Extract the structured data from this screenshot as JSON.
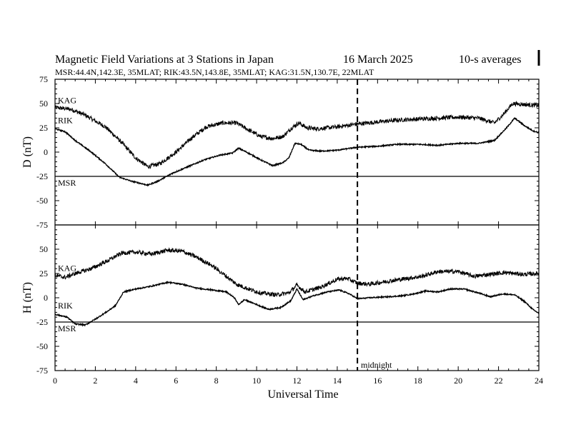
{
  "header": {
    "title": "Magnetic Field Variations at 3 Stations in Japan",
    "date": "16 March   2025",
    "averaging": "10-s averages",
    "stations_line": "MSR:44.4N,142.3E, 35MLAT;  RIK:43.5N,143.8E, 35MLAT;  KAG:31.5N,130.7E, 22MLAT"
  },
  "chart_data": {
    "type": "line",
    "xlabel": "Universal Time",
    "xlim": [
      0,
      24
    ],
    "x_ticks": [
      0,
      2,
      4,
      6,
      8,
      10,
      12,
      14,
      16,
      18,
      20,
      22,
      24
    ],
    "annotation": {
      "x": 15,
      "label": "midnight"
    },
    "panels": [
      {
        "id": "D",
        "ylabel": "D (nT)",
        "ylim": [
          -75,
          75
        ],
        "y_ticks": [
          75,
          50,
          25,
          0,
          -25,
          -50,
          -75
        ],
        "series": [
          {
            "name": "KAG",
            "noise": 2.2,
            "points": [
              [
                0,
                46
              ],
              [
                0.8,
                44
              ],
              [
                1.5,
                38
              ],
              [
                2.5,
                26
              ],
              [
                3.3,
                10
              ],
              [
                4.0,
                -6
              ],
              [
                4.6,
                -15
              ],
              [
                5.2,
                -12
              ],
              [
                6.0,
                0
              ],
              [
                6.8,
                15
              ],
              [
                7.5,
                26
              ],
              [
                8.3,
                30
              ],
              [
                9.0,
                30
              ],
              [
                9.5,
                24
              ],
              [
                10.2,
                16
              ],
              [
                10.8,
                14
              ],
              [
                11.3,
                16
              ],
              [
                11.8,
                26
              ],
              [
                12.1,
                30
              ],
              [
                12.5,
                25
              ],
              [
                13.0,
                24
              ],
              [
                14.0,
                26
              ],
              [
                15.0,
                29
              ],
              [
                16.0,
                31
              ],
              [
                17.0,
                33
              ],
              [
                18.0,
                34
              ],
              [
                19.0,
                35
              ],
              [
                20.0,
                36
              ],
              [
                21.0,
                35
              ],
              [
                21.8,
                30
              ],
              [
                22.2,
                38
              ],
              [
                22.7,
                50
              ],
              [
                23.3,
                49
              ],
              [
                24,
                48
              ]
            ]
          },
          {
            "name": "RIK",
            "noise": 0.6,
            "points": [
              [
                0,
                24
              ],
              [
                0.5,
                21
              ],
              [
                1.0,
                12
              ],
              [
                1.8,
                0
              ],
              [
                2.5,
                -12
              ],
              [
                3.2,
                -26
              ],
              [
                3.8,
                -30
              ],
              [
                4.6,
                -34
              ],
              [
                5.1,
                -30
              ],
              [
                5.8,
                -22
              ],
              [
                6.6,
                -15
              ],
              [
                7.4,
                -8
              ],
              [
                8.2,
                -3
              ],
              [
                8.8,
                -1
              ],
              [
                9.1,
                4
              ],
              [
                9.5,
                0
              ],
              [
                10.2,
                -8
              ],
              [
                10.8,
                -14
              ],
              [
                11.3,
                -11
              ],
              [
                11.6,
                -6
              ],
              [
                11.9,
                9
              ],
              [
                12.2,
                8
              ],
              [
                12.6,
                2
              ],
              [
                13.2,
                1
              ],
              [
                14.0,
                2
              ],
              [
                15.0,
                5
              ],
              [
                16.0,
                6
              ],
              [
                17.0,
                8
              ],
              [
                18.0,
                8
              ],
              [
                19.0,
                7
              ],
              [
                20.0,
                9
              ],
              [
                21.0,
                9
              ],
              [
                21.8,
                12
              ],
              [
                22.4,
                25
              ],
              [
                22.8,
                35
              ],
              [
                23.3,
                27
              ],
              [
                23.7,
                22
              ],
              [
                24,
                20
              ]
            ]
          },
          {
            "name": "MSR",
            "noise": 0,
            "points": [
              [
                0,
                -25
              ],
              [
                24,
                -25
              ]
            ]
          }
        ]
      },
      {
        "id": "H",
        "ylabel": "H (nT)",
        "ylim": [
          -75,
          75
        ],
        "y_ticks": [
          75,
          50,
          25,
          0,
          -25,
          -50,
          -75
        ],
        "series": [
          {
            "name": "KAG",
            "noise": 2.2,
            "points": [
              [
                0,
                23
              ],
              [
                0.5,
                21
              ],
              [
                1.0,
                25
              ],
              [
                1.8,
                30
              ],
              [
                2.6,
                38
              ],
              [
                3.3,
                46
              ],
              [
                4.0,
                47
              ],
              [
                4.8,
                45
              ],
              [
                5.6,
                49
              ],
              [
                6.3,
                48
              ],
              [
                7.0,
                42
              ],
              [
                7.8,
                33
              ],
              [
                8.5,
                22
              ],
              [
                9.0,
                14
              ],
              [
                9.6,
                9
              ],
              [
                10.2,
                5
              ],
              [
                11.0,
                3
              ],
              [
                11.6,
                5
              ],
              [
                12.0,
                13
              ],
              [
                12.4,
                6
              ],
              [
                13.2,
                11
              ],
              [
                14.0,
                19
              ],
              [
                14.5,
                20
              ],
              [
                15.0,
                15
              ],
              [
                15.6,
                14
              ],
              [
                16.5,
                17
              ],
              [
                17.5,
                20
              ],
              [
                18.2,
                22
              ],
              [
                19.0,
                27
              ],
              [
                20.0,
                27
              ],
              [
                20.8,
                22
              ],
              [
                21.5,
                24
              ],
              [
                22.3,
                26
              ],
              [
                23.2,
                24
              ],
              [
                24,
                25
              ]
            ]
          },
          {
            "name": "RIK",
            "noise": 0.6,
            "points": [
              [
                0,
                -17
              ],
              [
                0.6,
                -20
              ],
              [
                1.0,
                -27
              ],
              [
                1.5,
                -28
              ],
              [
                2.0,
                -22
              ],
              [
                2.6,
                -14
              ],
              [
                3.0,
                -8
              ],
              [
                3.4,
                6
              ],
              [
                4.0,
                9
              ],
              [
                4.8,
                12
              ],
              [
                5.6,
                16
              ],
              [
                6.3,
                14
              ],
              [
                7.0,
                10
              ],
              [
                7.8,
                8
              ],
              [
                8.5,
                6
              ],
              [
                8.9,
                0
              ],
              [
                9.1,
                -7
              ],
              [
                9.4,
                -2
              ],
              [
                10.0,
                -7
              ],
              [
                10.6,
                -12
              ],
              [
                11.2,
                -10
              ],
              [
                11.7,
                -3
              ],
              [
                12.0,
                9
              ],
              [
                12.3,
                -2
              ],
              [
                12.8,
                2
              ],
              [
                13.5,
                6
              ],
              [
                14.1,
                8
              ],
              [
                14.6,
                4
              ],
              [
                15.0,
                -1
              ],
              [
                15.6,
                0
              ],
              [
                16.5,
                1
              ],
              [
                17.2,
                2
              ],
              [
                17.8,
                4
              ],
              [
                18.4,
                7
              ],
              [
                19.0,
                6
              ],
              [
                19.6,
                9
              ],
              [
                20.3,
                9
              ],
              [
                21.0,
                5
              ],
              [
                21.6,
                1
              ],
              [
                22.2,
                4
              ],
              [
                22.8,
                3
              ],
              [
                23.3,
                -4
              ],
              [
                23.7,
                -12
              ],
              [
                24,
                -16
              ]
            ]
          },
          {
            "name": "MSR",
            "noise": 0,
            "points": [
              [
                0,
                -25
              ],
              [
                24,
                -25
              ]
            ]
          }
        ]
      }
    ]
  }
}
